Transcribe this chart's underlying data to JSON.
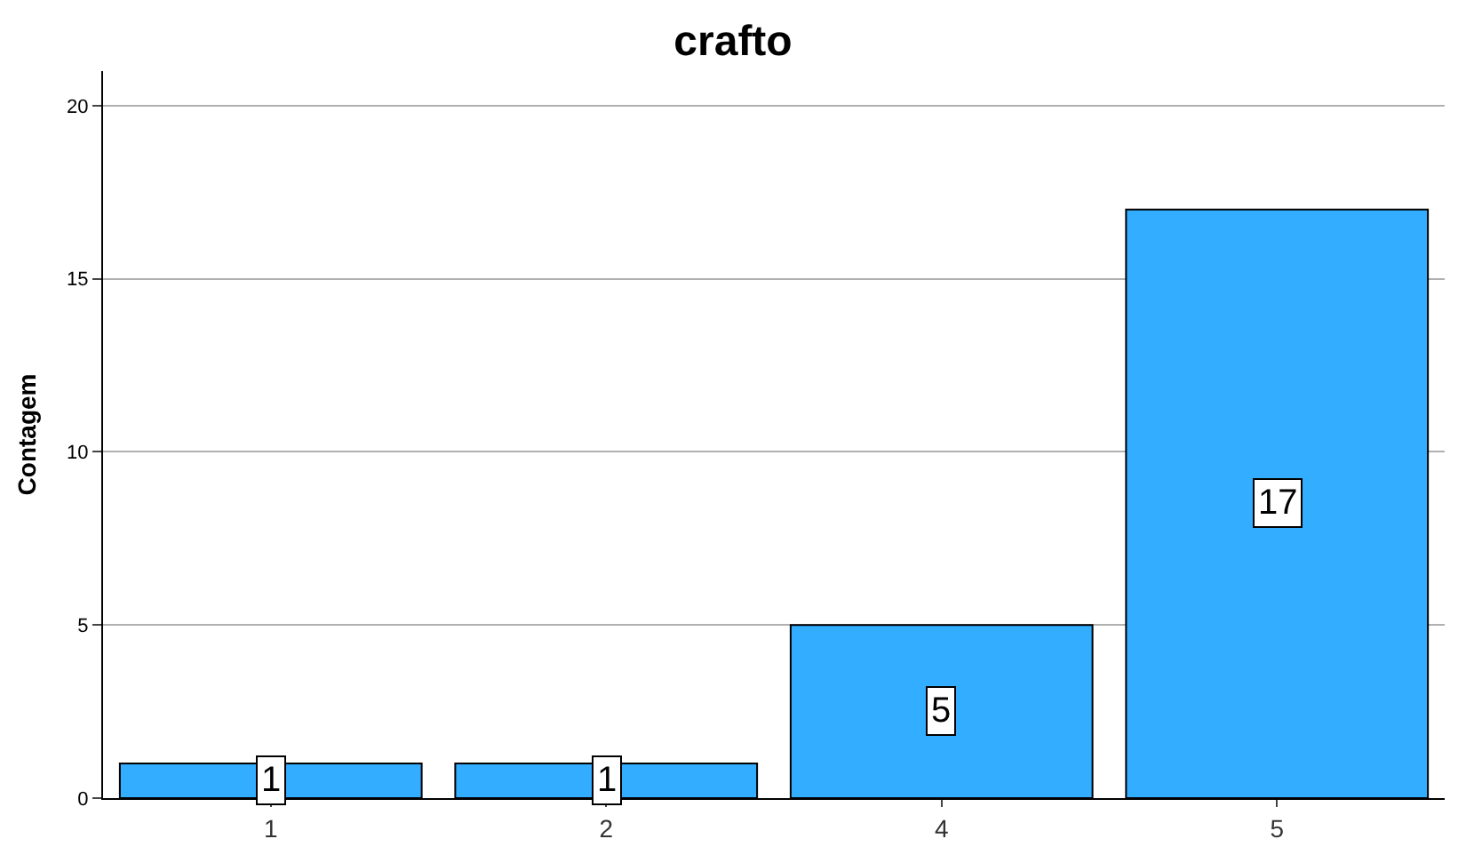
{
  "chart_data": {
    "type": "bar",
    "title": "crafto",
    "ylabel": "Contagem",
    "categories": [
      "1",
      "2",
      "4",
      "5"
    ],
    "values": [
      1,
      1,
      5,
      17
    ],
    "color": "#33adff",
    "ylim": [
      0,
      21
    ],
    "yticks": [
      0,
      5,
      10,
      15,
      20
    ],
    "grid": "y",
    "data_labels": true
  }
}
